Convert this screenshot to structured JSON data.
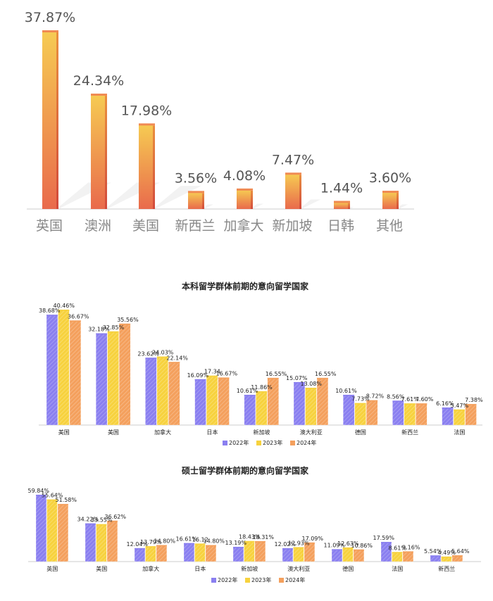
{
  "chart_data": [
    {
      "type": "bar",
      "categories": [
        "英国",
        "澳洲",
        "美国",
        "新西兰",
        "加拿大",
        "新加坡",
        "日韩",
        "其他"
      ],
      "values": [
        37.87,
        24.34,
        17.98,
        3.56,
        4.08,
        7.47,
        1.44,
        3.6
      ],
      "value_labels": [
        "37.87%",
        "24.34%",
        "17.98%",
        "3.56%",
        "4.08%",
        "7.47%",
        "1.44%",
        "3.60%"
      ],
      "title": "",
      "ylim": [
        0,
        40
      ],
      "grid": false,
      "colors": [
        "#f6cb52",
        "#e96a4c"
      ]
    },
    {
      "type": "bar",
      "title": "本科留学群体前期的意向留学国家",
      "categories": [
        "美国",
        "美国",
        "加拿大",
        "日本",
        "新加坡",
        "澳大利亚",
        "德国",
        "新西兰",
        "法国"
      ],
      "series": [
        {
          "name": "2022年",
          "color": "#8a7ff0",
          "values": [
            38.68,
            32.18,
            23.62,
            16.09,
            10.61,
            15.07,
            10.61,
            8.56,
            6.16
          ],
          "labels": [
            "38.68%",
            "32.18%",
            "23.62%",
            "16.09%",
            "10.61%",
            "15.07%",
            "10.61%",
            "8.56%",
            "6.16%"
          ]
        },
        {
          "name": "2023年",
          "color": "#f7d23e",
          "values": [
            40.46,
            32.85,
            24.03,
            17.34,
            11.86,
            13.08,
            7.73,
            7.61,
            5.47
          ],
          "labels": [
            "40.46%",
            "32.85%",
            "24.03%",
            "17.34",
            "11.86%",
            "13.08%",
            "7.73%",
            "7.61%",
            "5.47%"
          ]
        },
        {
          "name": "2024年",
          "color": "#f4a05d",
          "values": [
            36.67,
            35.56,
            22.14,
            16.67,
            16.55,
            16.55,
            8.72,
            7.6,
            7.38
          ],
          "labels": [
            "36.67%",
            "35.56%",
            "22.14%",
            "16.67%",
            "16.55%",
            "16.55%",
            "8.72%",
            "7.60%",
            "7.38%"
          ]
        }
      ],
      "ylim": [
        0,
        42
      ],
      "legend": "bottom",
      "grid": false
    },
    {
      "type": "bar",
      "title": "硕士留学群体前期的意向留学国家",
      "categories": [
        "英国",
        "美国",
        "加拿大",
        "日本",
        "新加坡",
        "澳大利亚",
        "德国",
        "法国",
        "新西兰"
      ],
      "series": [
        {
          "name": "2022年",
          "color": "#8a7ff0",
          "values": [
            59.84,
            34.22,
            12.04,
            16.61,
            13.19,
            12.02,
            11.09,
            17.59,
            5.54
          ],
          "labels": [
            "59.84%",
            "34.22%",
            "12.04%",
            "16.61%",
            "13.19%",
            "12.02%",
            "11.09%",
            "17.59%",
            "5.54%"
          ]
        },
        {
          "name": "2023年",
          "color": "#f7d23e",
          "values": [
            55.64,
            33.55,
            13.79,
            16.12,
            18.43,
            12.93,
            12.63,
            8.61,
            4.49
          ],
          "labels": [
            "55.64%",
            "33.55%",
            "13.79%",
            "16.12",
            "18.43%",
            "12.93%",
            "12.63%",
            "8.61%",
            "4.49%"
          ]
        },
        {
          "name": "2024年",
          "color": "#f4a05d",
          "values": [
            51.58,
            36.62,
            14.8,
            14.8,
            18.31,
            17.09,
            10.86,
            9.16,
            5.64
          ],
          "labels": [
            "51.58%",
            "36.62%",
            "14.80%",
            "14.80%",
            "18.31%",
            "17.09%",
            "10.86%",
            "9.16%",
            "5.64%"
          ]
        }
      ],
      "ylim": [
        0,
        62
      ],
      "legend": "bottom",
      "grid": false
    }
  ]
}
